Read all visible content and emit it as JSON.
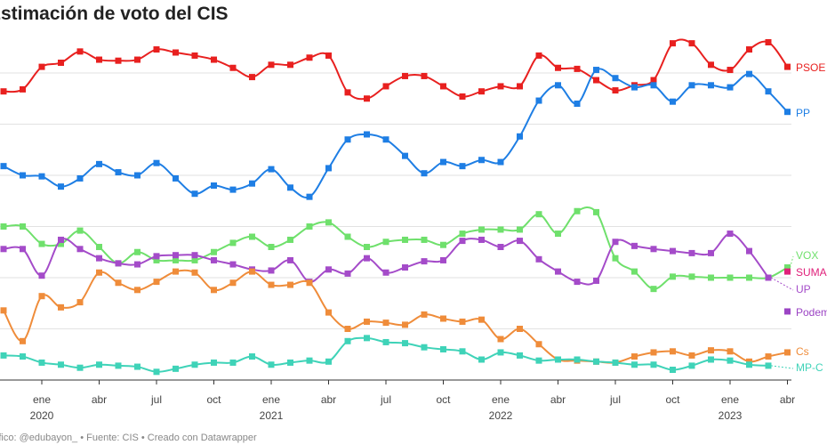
{
  "chart_data": {
    "type": "line",
    "title": "Estimación de voto del CIS",
    "footer": "Gráfico: @edubayon_ • Fuente: CIS • Creado con Datawrapper",
    "x": [
      "2019-11",
      "2019-12",
      "2020-01",
      "2020-02",
      "2020-03",
      "2020-04",
      "2020-05",
      "2020-06",
      "2020-07",
      "2020-08",
      "2020-09",
      "2020-10",
      "2020-11",
      "2020-12",
      "2021-01",
      "2021-02",
      "2021-03",
      "2021-04",
      "2021-05",
      "2021-06",
      "2021-07",
      "2021-08",
      "2021-09",
      "2021-10",
      "2021-11",
      "2021-12",
      "2022-01",
      "2022-02",
      "2022-03",
      "2022-04",
      "2022-05",
      "2022-06",
      "2022-07",
      "2022-08",
      "2022-09",
      "2022-10",
      "2022-11",
      "2022-12",
      "2023-01",
      "2023-02",
      "2023-03",
      "2023-04"
    ],
    "xticks": [
      {
        "value": "2020-01",
        "label": "ene\n2020"
      },
      {
        "value": "2020-04",
        "label": "abr"
      },
      {
        "value": "2020-07",
        "label": "jul"
      },
      {
        "value": "2020-10",
        "label": "oct"
      },
      {
        "value": "2021-01",
        "label": "ene\n2021"
      },
      {
        "value": "2021-04",
        "label": "abr"
      },
      {
        "value": "2021-07",
        "label": "jul"
      },
      {
        "value": "2021-10",
        "label": "oct"
      },
      {
        "value": "2022-01",
        "label": "ene\n2022"
      },
      {
        "value": "2022-04",
        "label": "abr"
      },
      {
        "value": "2022-07",
        "label": "jul"
      },
      {
        "value": "2022-10",
        "label": "oct"
      },
      {
        "value": "2023-01",
        "label": "ene\n2023"
      },
      {
        "value": "2023-04",
        "label": "abr"
      }
    ],
    "ylim": [
      0,
      35
    ],
    "yticks": [
      0,
      5,
      10,
      15,
      20,
      25,
      30
    ],
    "grid": true,
    "series": [
      {
        "name": "PSOE",
        "color": "#e8201f",
        "values": [
          28.2,
          28.4,
          30.6,
          31.0,
          32.1,
          31.3,
          31.2,
          31.3,
          32.3,
          32.0,
          31.7,
          31.3,
          30.5,
          29.6,
          30.8,
          30.8,
          31.5,
          31.7,
          28.1,
          27.5,
          28.7,
          29.7,
          29.7,
          28.7,
          27.7,
          28.2,
          28.7,
          28.7,
          31.7,
          30.5,
          30.4,
          29.3,
          28.3,
          28.8,
          29.3,
          32.9,
          32.9,
          30.8,
          30.3,
          32.3,
          33.0,
          30.6
        ]
      },
      {
        "name": "PP",
        "color": "#1e7ee4",
        "values": [
          20.9,
          20.0,
          19.9,
          18.9,
          19.7,
          21.1,
          20.3,
          20.0,
          21.2,
          19.7,
          18.2,
          19.0,
          18.6,
          19.2,
          20.6,
          18.8,
          17.9,
          20.7,
          23.5,
          24.0,
          23.5,
          21.9,
          20.2,
          21.3,
          20.9,
          21.5,
          21.3,
          23.8,
          27.3,
          28.8,
          27.0,
          30.3,
          29.5,
          28.6,
          28.8,
          27.2,
          28.8,
          28.8,
          28.6,
          29.9,
          28.2,
          26.2
        ]
      },
      {
        "name": "VOX",
        "color": "#6fe06c",
        "values": [
          15.0,
          15.0,
          13.3,
          13.3,
          14.6,
          13.0,
          11.4,
          12.5,
          11.7,
          11.7,
          11.7,
          12.5,
          13.4,
          14.0,
          13.0,
          13.7,
          15.0,
          15.4,
          14.0,
          13.0,
          13.5,
          13.7,
          13.7,
          13.2,
          14.3,
          14.7,
          14.7,
          14.7,
          16.2,
          14.3,
          16.5,
          16.4,
          11.9,
          10.6,
          8.9,
          10.1,
          10.1,
          10.0,
          10.0,
          10.0,
          10.0,
          11.0
        ]
      },
      {
        "name": "SUMAR",
        "color": "#e0207a",
        "values": [
          null,
          null,
          null,
          null,
          null,
          null,
          null,
          null,
          null,
          null,
          null,
          null,
          null,
          null,
          null,
          null,
          null,
          null,
          null,
          null,
          null,
          null,
          null,
          null,
          null,
          null,
          null,
          null,
          null,
          null,
          null,
          null,
          null,
          null,
          null,
          null,
          null,
          null,
          null,
          null,
          null,
          10.6
        ]
      },
      {
        "name": "UP",
        "color": "#a44bc9",
        "values": [
          12.8,
          12.8,
          10.2,
          13.7,
          12.8,
          11.9,
          11.4,
          11.3,
          12.1,
          12.2,
          12.2,
          11.7,
          11.3,
          10.8,
          10.7,
          11.7,
          9.6,
          10.8,
          10.4,
          11.9,
          10.5,
          11.0,
          11.6,
          11.7,
          13.6,
          13.7,
          13.0,
          13.6,
          11.8,
          10.6,
          9.6,
          9.7,
          13.5,
          13.1,
          12.8,
          12.6,
          12.4,
          12.4,
          14.3,
          12.6,
          10.0,
          null
        ]
      },
      {
        "name": "Podemos",
        "color": "#9b44c4",
        "values": [
          null,
          null,
          null,
          null,
          null,
          null,
          null,
          null,
          null,
          null,
          null,
          null,
          null,
          null,
          null,
          null,
          null,
          null,
          null,
          null,
          null,
          null,
          null,
          null,
          null,
          null,
          null,
          null,
          null,
          null,
          null,
          null,
          null,
          null,
          null,
          null,
          null,
          null,
          null,
          null,
          null,
          6.7
        ]
      },
      {
        "name": "Cs",
        "color": "#ef8c3a",
        "values": [
          6.8,
          3.8,
          8.2,
          7.1,
          7.6,
          10.5,
          9.5,
          8.8,
          9.6,
          10.6,
          10.5,
          8.8,
          9.5,
          10.6,
          9.3,
          9.3,
          9.5,
          6.6,
          5.0,
          5.7,
          5.6,
          5.4,
          6.4,
          6.0,
          5.7,
          5.9,
          4.0,
          5.0,
          3.5,
          2.0,
          1.9,
          1.8,
          1.7,
          2.3,
          2.7,
          2.8,
          2.4,
          2.9,
          2.8,
          1.8,
          2.3,
          2.7
        ]
      },
      {
        "name": "MP-C",
        "color": "#3fd3b8",
        "values": [
          2.4,
          2.3,
          1.7,
          1.5,
          1.2,
          1.5,
          1.4,
          1.3,
          0.8,
          1.1,
          1.5,
          1.7,
          1.7,
          2.3,
          1.5,
          1.7,
          1.9,
          1.8,
          3.8,
          4.1,
          3.7,
          3.6,
          3.2,
          3.0,
          2.8,
          2.0,
          2.7,
          2.4,
          1.9,
          2.0,
          2.0,
          1.8,
          1.7,
          1.5,
          1.5,
          1.0,
          1.4,
          2.0,
          1.9,
          1.5,
          1.4,
          null
        ]
      }
    ]
  }
}
